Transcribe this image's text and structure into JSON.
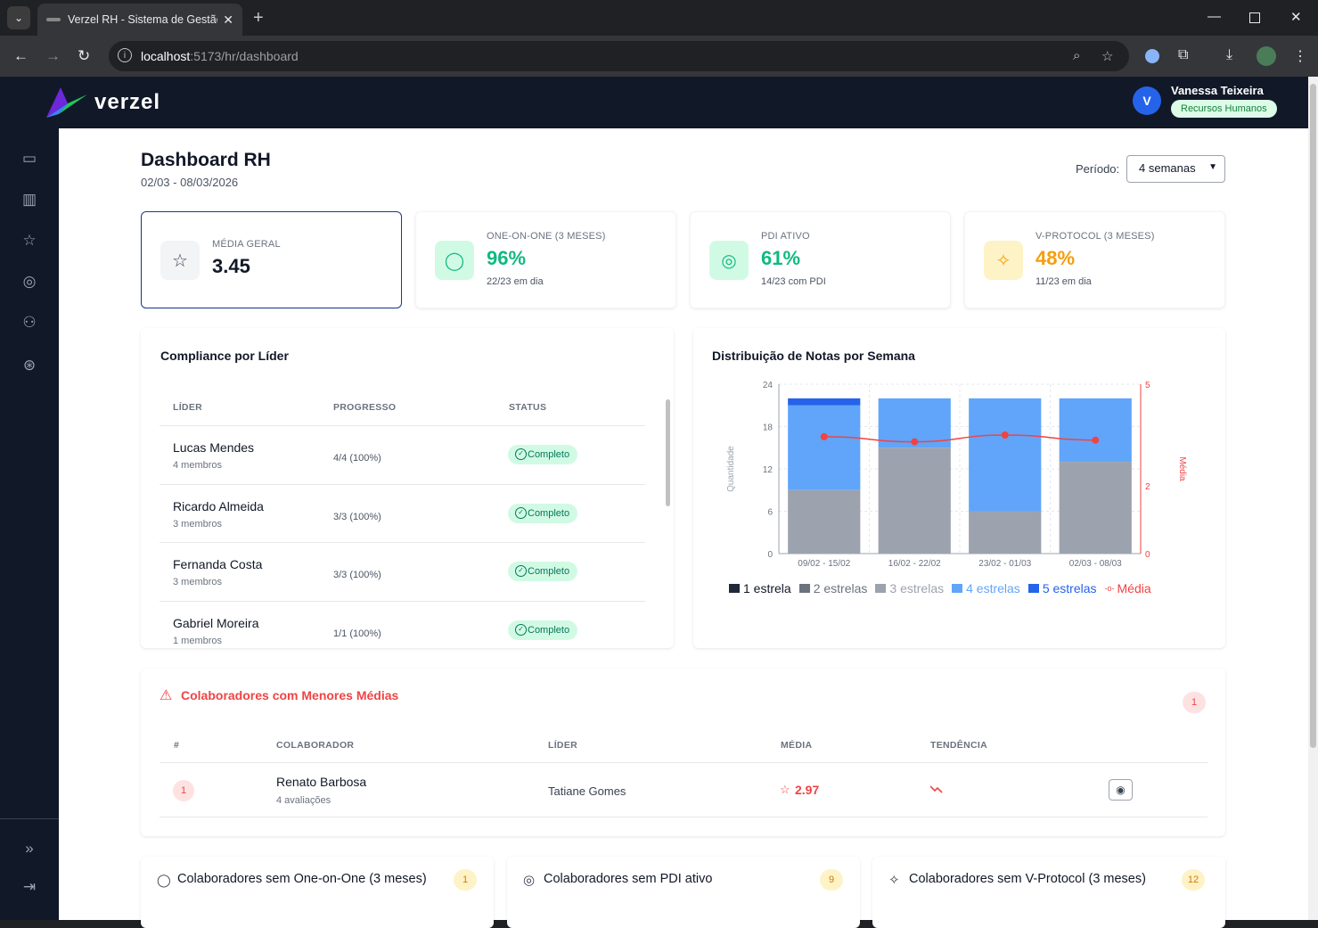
{
  "browser": {
    "tab_title": "Verzel RH - Sistema de Gestão d",
    "url_host": "localhost",
    "url_path": ":5173/hr/dashboard"
  },
  "app": {
    "logo_text": "verzel",
    "user_initial": "V",
    "user_name": "Vanessa Teixeira",
    "user_role": "Recursos Humanos"
  },
  "page": {
    "title": "Dashboard RH",
    "date_range": "02/03 - 08/03/2026",
    "period_label": "Período:",
    "period_value": "4 semanas"
  },
  "cards": [
    {
      "label": "MÉDIA GERAL",
      "value": "3.45",
      "note": "",
      "color": "#111827",
      "icon": "star-icon"
    },
    {
      "label": "ONE-ON-ONE (3 MESES)",
      "value": "96%",
      "note": "22/23 em dia",
      "color": "#10b981",
      "icon": "chat-icon"
    },
    {
      "label": "PDI ATIVO",
      "value": "61%",
      "note": "14/23 com PDI",
      "color": "#10b981",
      "icon": "target-icon"
    },
    {
      "label": "V-PROTOCOL (3 MESES)",
      "value": "48%",
      "note": "11/23 em dia",
      "color": "#f59e0b",
      "icon": "spark-icon"
    }
  ],
  "compliance": {
    "title": "Compliance por Líder",
    "headers": [
      "LÍDER",
      "PROGRESSO",
      "STATUS"
    ],
    "rows": [
      {
        "name": "Lucas Mendes",
        "members": "4 membros",
        "progress": "4/4 (100%)",
        "status": "Completo"
      },
      {
        "name": "Ricardo Almeida",
        "members": "3 membros",
        "progress": "3/3 (100%)",
        "status": "Completo"
      },
      {
        "name": "Fernanda Costa",
        "members": "3 membros",
        "progress": "3/3 (100%)",
        "status": "Completo"
      },
      {
        "name": "Gabriel Moreira",
        "members": "1 membros",
        "progress": "1/1 (100%)",
        "status": "Completo"
      }
    ]
  },
  "chart_title": "Distribuição de Notas por Semana",
  "chart_data": {
    "type": "bar",
    "stacked": true,
    "categories": [
      "09/02 - 15/02",
      "16/02 - 22/02",
      "23/02 - 01/03",
      "02/03 - 08/03"
    ],
    "series": [
      {
        "name": "1 estrela",
        "values": [
          0,
          0,
          0,
          0
        ],
        "color": "#1f2937"
      },
      {
        "name": "2 estrelas",
        "values": [
          0,
          0,
          0,
          0
        ],
        "color": "#6b7280"
      },
      {
        "name": "3 estrelas",
        "values": [
          9,
          15,
          6,
          13
        ],
        "color": "#9ca3af"
      },
      {
        "name": "4 estrelas",
        "values": [
          12,
          7,
          16,
          9
        ],
        "color": "#60a5fa"
      },
      {
        "name": "5 estrelas",
        "values": [
          1,
          0,
          0,
          0
        ],
        "color": "#2563eb"
      }
    ],
    "line": {
      "name": "Média",
      "values": [
        3.45,
        3.3,
        3.5,
        3.35
      ],
      "color": "#ef4444"
    },
    "ylabel": "Quantidade",
    "y2label": "Média",
    "yticks": [
      "24",
      "18",
      "12",
      "6",
      "0"
    ],
    "y2ticks": [
      "5",
      "2",
      "0"
    ],
    "ylim": [
      0,
      24
    ],
    "y2lim": [
      0,
      5
    ]
  },
  "low": {
    "title": "Colaboradores com Menores Médias",
    "count": "1",
    "headers": [
      "#",
      "COLABORADOR",
      "LÍDER",
      "MÉDIA",
      "TENDÊNCIA"
    ],
    "rows": [
      {
        "rank": "1",
        "name": "Renato Barbosa",
        "evals": "4 avaliações",
        "leader": "Tatiane Gomes",
        "avg": "2.97"
      }
    ]
  },
  "bottom": [
    {
      "title": "Colaboradores sem One-on-One (3 meses)",
      "count": "1"
    },
    {
      "title": "Colaboradores sem PDI ativo",
      "count": "9"
    },
    {
      "title": "Colaboradores sem V-Protocol (3 meses)",
      "count": "12"
    }
  ]
}
